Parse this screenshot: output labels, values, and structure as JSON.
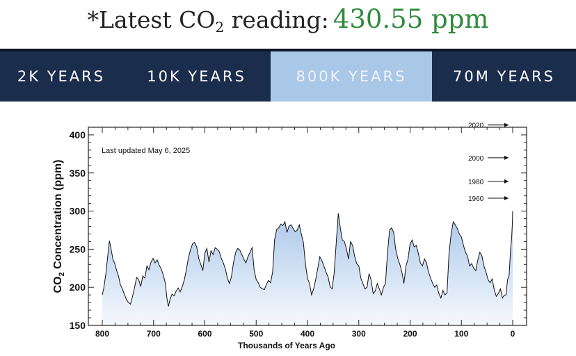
{
  "header": {
    "prefix": "*Latest CO",
    "subscript": "2",
    "suffix": " reading:",
    "value": "430.55 ppm",
    "value_color": "#2e8b3c"
  },
  "tabs": [
    {
      "label": "2K YEARS",
      "active": false
    },
    {
      "label": "10K YEARS",
      "active": false
    },
    {
      "label": "800K YEARS",
      "active": true
    },
    {
      "label": "70M YEARS",
      "active": false
    }
  ],
  "colors": {
    "nav_bg": "#1b2d4d",
    "active_tab": "#a9c7e6",
    "area_top": "#a9c7ea"
  },
  "chart_data": {
    "type": "area",
    "annotation": "Last updated May 6, 2025",
    "xlabel": "Thousands of Years Ago",
    "ylabel_prefix": "CO",
    "ylabel_sub": "2",
    "ylabel_suffix": " Concentration (ppm)",
    "x_reversed": true,
    "xlim": [
      800,
      0
    ],
    "ylim": [
      150,
      410
    ],
    "xticks": [
      800,
      700,
      600,
      500,
      400,
      300,
      200,
      100,
      0
    ],
    "yticks": [
      150,
      200,
      250,
      300,
      350,
      400
    ],
    "year_markers": [
      {
        "label": "2020",
        "value": 413
      },
      {
        "label": "2000",
        "value": 370
      },
      {
        "label": "1980",
        "value": 339
      },
      {
        "label": "1960",
        "value": 317
      }
    ],
    "x": [
      800,
      797,
      793,
      789,
      786,
      783,
      779,
      776,
      772,
      768,
      765,
      761,
      757,
      753,
      749,
      745,
      741,
      737,
      733,
      729,
      725,
      721,
      717,
      713,
      709,
      705,
      701,
      697,
      693,
      689,
      685,
      681,
      677,
      674,
      671,
      668,
      664,
      660,
      656,
      652,
      648,
      644,
      640,
      636,
      632,
      628,
      624,
      620,
      616,
      612,
      608,
      604,
      600,
      596,
      592,
      588,
      584,
      580,
      576,
      572,
      568,
      564,
      560,
      556,
      552,
      548,
      544,
      540,
      536,
      532,
      528,
      524,
      520,
      516,
      512,
      508,
      504,
      500,
      496,
      492,
      488,
      484,
      480,
      476,
      472,
      468,
      464,
      460,
      456,
      452,
      448,
      444,
      440,
      436,
      432,
      428,
      424,
      420,
      416,
      412,
      408,
      404,
      400,
      396,
      392,
      388,
      384,
      380,
      376,
      372,
      368,
      364,
      360,
      356,
      352,
      348,
      344,
      340,
      336,
      332,
      328,
      324,
      320,
      316,
      312,
      308,
      304,
      300,
      296,
      292,
      288,
      284,
      280,
      276,
      272,
      268,
      264,
      260,
      256,
      252,
      248,
      244,
      240,
      236,
      232,
      228,
      224,
      220,
      216,
      212,
      208,
      204,
      200,
      196,
      192,
      188,
      184,
      180,
      176,
      172,
      168,
      164,
      160,
      156,
      152,
      148,
      144,
      140,
      136,
      132,
      128,
      124,
      120,
      116,
      112,
      108,
      104,
      100,
      96,
      92,
      88,
      84,
      80,
      76,
      72,
      68,
      64,
      60,
      56,
      52,
      48,
      44,
      40,
      36,
      32,
      28,
      24,
      20,
      16,
      13,
      10,
      7,
      4,
      2,
      1,
      0.5,
      0
    ],
    "values": [
      190,
      199,
      218,
      243,
      261,
      251,
      236,
      232,
      222,
      214,
      204,
      198,
      191,
      184,
      180,
      178,
      188,
      200,
      213,
      210,
      201,
      215,
      212,
      228,
      223,
      233,
      238,
      232,
      236,
      229,
      224,
      216,
      205,
      186,
      175,
      184,
      191,
      189,
      195,
      199,
      194,
      201,
      210,
      223,
      239,
      249,
      257,
      259,
      253,
      238,
      230,
      222,
      245,
      251,
      233,
      248,
      243,
      252,
      250,
      247,
      238,
      232,
      224,
      212,
      205,
      215,
      233,
      246,
      251,
      249,
      243,
      237,
      232,
      240,
      246,
      252,
      223,
      210,
      206,
      200,
      198,
      197,
      204,
      209,
      206,
      220,
      263,
      276,
      278,
      283,
      281,
      286,
      272,
      280,
      282,
      277,
      273,
      275,
      282,
      270,
      259,
      230,
      212,
      205,
      190,
      198,
      210,
      225,
      240,
      235,
      228,
      220,
      214,
      201,
      198,
      218,
      258,
      297,
      278,
      262,
      260,
      250,
      237,
      260,
      255,
      240,
      231,
      228,
      212,
      205,
      198,
      200,
      218,
      210,
      192,
      195,
      205,
      198,
      190,
      200,
      205,
      245,
      275,
      278,
      272,
      250,
      238,
      230,
      220,
      205,
      228,
      237,
      257,
      262,
      253,
      255,
      245,
      232,
      228,
      237,
      232,
      220,
      212,
      205,
      200,
      203,
      192,
      186,
      196,
      190,
      193,
      245,
      270,
      286,
      282,
      277,
      270,
      266,
      255,
      246,
      241,
      228,
      231,
      225,
      222,
      236,
      246,
      241,
      228,
      220,
      210,
      206,
      211,
      197,
      188,
      192,
      198,
      186,
      190,
      190,
      210,
      215,
      250,
      265,
      280,
      285,
      300
    ]
  }
}
